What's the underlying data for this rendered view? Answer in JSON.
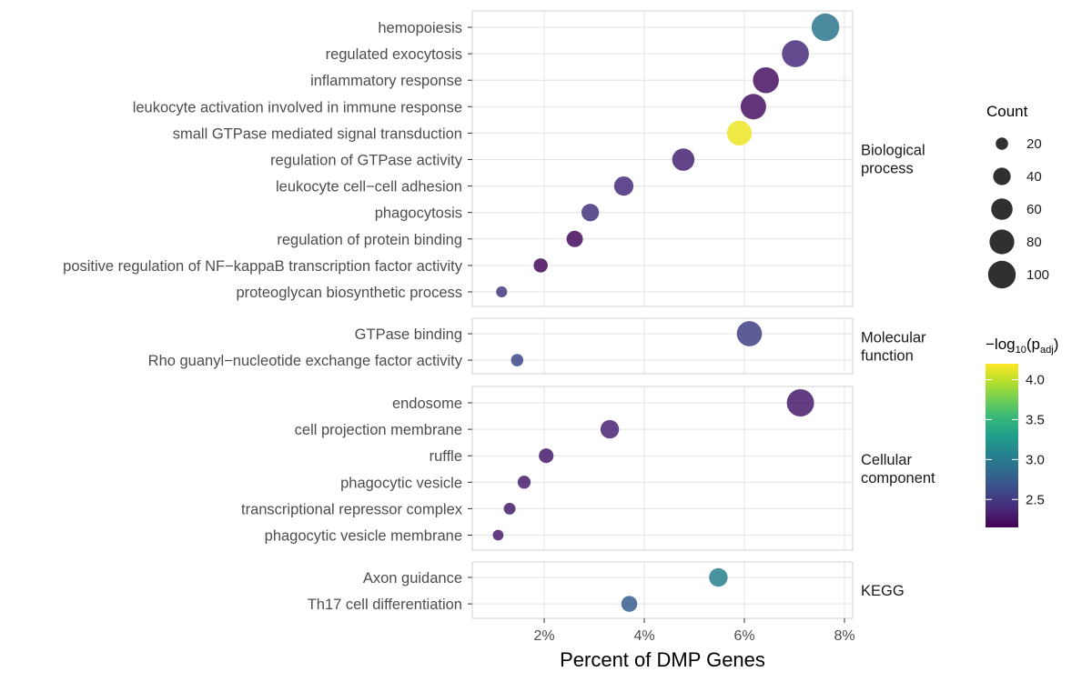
{
  "chart_data": {
    "type": "scatter",
    "xlabel": "Percent of DMP Genes",
    "x_unit": "%",
    "xlim": [
      0.5,
      8.2
    ],
    "x_ticks": [
      {
        "value": 2,
        "label": "2%"
      },
      {
        "value": 4,
        "label": "4%"
      },
      {
        "value": 6,
        "label": "6%"
      },
      {
        "value": 8,
        "label": "8%"
      }
    ],
    "grid": true,
    "facets": [
      {
        "label_lines": [
          "Biological",
          "process"
        ],
        "terms": [
          {
            "term": "hemopoiesis",
            "percent": 7.62,
            "count": 100,
            "neg_log10_padj": 2.95
          },
          {
            "term": "regulated exocytosis",
            "percent": 7.02,
            "count": 95,
            "neg_log10_padj": 2.4
          },
          {
            "term": "inflammatory response",
            "percent": 6.43,
            "count": 88,
            "neg_log10_padj": 2.25
          },
          {
            "term": "leukocyte activation involved in immune response",
            "percent": 6.18,
            "count": 85,
            "neg_log10_padj": 2.25
          },
          {
            "term": "small GTPase mediated signal transduction",
            "percent": 5.9,
            "count": 80,
            "neg_log10_padj": 4.15
          },
          {
            "term": "regulation of GTPase activity",
            "percent": 4.78,
            "count": 65,
            "neg_log10_padj": 2.35
          },
          {
            "term": "leukocyte cell−cell adhesion",
            "percent": 3.59,
            "count": 49,
            "neg_log10_padj": 2.4
          },
          {
            "term": "phagocytosis",
            "percent": 2.92,
            "count": 40,
            "neg_log10_padj": 2.45
          },
          {
            "term": "regulation of protein binding",
            "percent": 2.61,
            "count": 35,
            "neg_log10_padj": 2.2
          },
          {
            "term": "positive regulation of NF−kappaB transcription factor activity",
            "percent": 1.93,
            "count": 26,
            "neg_log10_padj": 2.2
          },
          {
            "term": "proteoglycan biosynthetic process",
            "percent": 1.15,
            "count": 16,
            "neg_log10_padj": 2.5
          }
        ]
      },
      {
        "label_lines": [
          "Molecular",
          "function"
        ],
        "terms": [
          {
            "term": "GTPase binding",
            "percent": 6.1,
            "count": 83,
            "neg_log10_padj": 2.55
          },
          {
            "term": "Rho guanyl−nucleotide exchange factor activity",
            "percent": 1.46,
            "count": 20,
            "neg_log10_padj": 2.6
          }
        ]
      },
      {
        "label_lines": [
          "Cellular",
          "component"
        ],
        "terms": [
          {
            "term": "endosome",
            "percent": 7.12,
            "count": 97,
            "neg_log10_padj": 2.3
          },
          {
            "term": "cell projection membrane",
            "percent": 3.31,
            "count": 45,
            "neg_log10_padj": 2.35
          },
          {
            "term": "ruffle",
            "percent": 2.04,
            "count": 28,
            "neg_log10_padj": 2.3
          },
          {
            "term": "phagocytic vesicle",
            "percent": 1.6,
            "count": 22,
            "neg_log10_padj": 2.3
          },
          {
            "term": "transcriptional repressor complex",
            "percent": 1.31,
            "count": 18,
            "neg_log10_padj": 2.3
          },
          {
            "term": "phagocytic vesicle membrane",
            "percent": 1.08,
            "count": 15,
            "neg_log10_padj": 2.3
          }
        ]
      },
      {
        "label_lines": [
          "KEGG"
        ],
        "terms": [
          {
            "term": "Axon guidance",
            "percent": 5.48,
            "count": 45,
            "neg_log10_padj": 3.05
          },
          {
            "term": "Th17 cell differentiation",
            "percent": 3.7,
            "count": 33,
            "neg_log10_padj": 2.75
          }
        ]
      }
    ],
    "size_legend": {
      "title": "Count",
      "values": [
        20,
        40,
        60,
        80,
        100
      ]
    },
    "color_legend": {
      "title_base": "−log",
      "title_sub": "10",
      "title_open": "(p",
      "title_sub2": "adj",
      "title_close": ")",
      "range": [
        2.15,
        4.2
      ],
      "ticks": [
        {
          "value": 2.5,
          "label": "2.5"
        },
        {
          "value": 3.0,
          "label": "3.0"
        },
        {
          "value": 3.5,
          "label": "3.5"
        },
        {
          "value": 4.0,
          "label": "4.0"
        }
      ],
      "palette": [
        "#440154",
        "#482878",
        "#3e4989",
        "#31688e",
        "#26828e",
        "#1f9e89",
        "#35b779",
        "#6ece58",
        "#b5de2b",
        "#fde725"
      ]
    }
  }
}
